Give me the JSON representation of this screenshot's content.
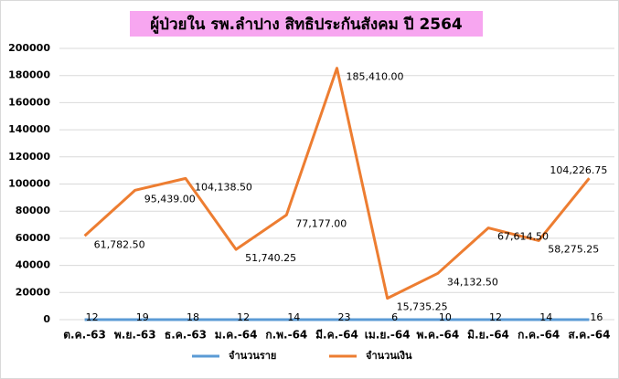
{
  "chart_data": {
    "type": "line",
    "title": "ผู้ป่วยใน รพ.ลำปาง สิทธิประกันสังคม ปี 2564",
    "categories": [
      "ต.ค.-63",
      "พ.ย.-63",
      "ธ.ค.-63",
      "ม.ค.-64",
      "ก.พ.-64",
      "มี.ค.-64",
      "เม.ย.-64",
      "พ.ค.-64",
      "มิ.ย.-64",
      "ก.ค.-64",
      "ส.ค.-64"
    ],
    "series": [
      {
        "name": "จำนวนราย",
        "color": "#5b9bd5",
        "values": [
          12,
          19,
          18,
          12,
          14,
          23,
          6,
          10,
          12,
          14,
          16
        ]
      },
      {
        "name": "จำนวนเงิน",
        "color": "#ed7d31",
        "values": [
          61782.5,
          95439,
          104138.5,
          51740.25,
          77177,
          185410,
          15735.25,
          34132.5,
          67614.5,
          58275.25,
          104226.75
        ],
        "value_labels": [
          "61,782.50",
          "95,439.00",
          "104,138.50",
          "51,740.25",
          "77,177.00",
          "185,410.00",
          "15,735.25",
          "34,132.50",
          "67,614.50",
          "58,275.25",
          "104,226.75"
        ]
      }
    ],
    "ylim": [
      0,
      200000
    ],
    "yticks": [
      0,
      20000,
      40000,
      60000,
      80000,
      100000,
      120000,
      140000,
      160000,
      180000,
      200000
    ],
    "grid": true,
    "legend": "bottom"
  }
}
